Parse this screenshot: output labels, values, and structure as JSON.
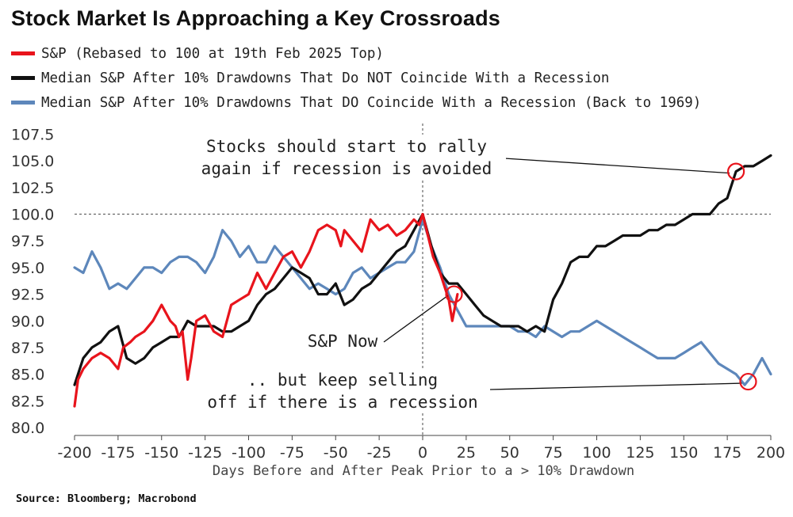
{
  "chart_data": {
    "type": "line",
    "title": "Stock Market Is Approaching a Key Crossroads",
    "xlabel": "Days Before and After Peak Prior to a > 10% Drawdown",
    "ylabel": "",
    "xlim": [
      -200,
      200
    ],
    "ylim": [
      80,
      108.5
    ],
    "x_ticks": [
      -200,
      -175,
      -150,
      -125,
      -100,
      -75,
      -50,
      -25,
      0,
      25,
      50,
      75,
      100,
      125,
      150,
      175,
      200
    ],
    "x_tick_labels": [
      "-200",
      "-175",
      "-150",
      "-125",
      "-100",
      "-75",
      "-50",
      "-25",
      "0",
      "25",
      "50",
      "75",
      "100",
      "125",
      "150",
      "175",
      "200"
    ],
    "y_ticks": [
      80,
      82.5,
      85,
      87.5,
      90,
      92.5,
      95,
      97.5,
      100,
      102.5,
      105,
      107.5
    ],
    "y_tick_labels": [
      "80.0",
      "82.5",
      "85.0",
      "87.5",
      "90.0",
      "92.5",
      "95.0",
      "97.5",
      "100.0",
      "102.5",
      "105.0",
      "107.5"
    ],
    "reference_lines": [
      {
        "axis": "y",
        "value": 100,
        "style": "dashed"
      },
      {
        "axis": "x",
        "value": 0,
        "style": "dashed"
      }
    ],
    "legend_position": "top-left",
    "series": [
      {
        "name": "S&P (Rebased to 100 at 19th Feb 2025 Top)",
        "color": "#e8141c",
        "x": [
          -200,
          -198,
          -195,
          -190,
          -185,
          -180,
          -175,
          -172,
          -168,
          -165,
          -160,
          -155,
          -150,
          -145,
          -142,
          -140,
          -138,
          -135,
          -133,
          -130,
          -125,
          -120,
          -115,
          -110,
          -105,
          -100,
          -95,
          -90,
          -85,
          -80,
          -75,
          -70,
          -65,
          -60,
          -55,
          -50,
          -47,
          -45,
          -40,
          -35,
          -30,
          -25,
          -20,
          -15,
          -10,
          -5,
          -2,
          0,
          3,
          6,
          10,
          13,
          15,
          17,
          20
        ],
        "y": [
          82,
          84.5,
          85.5,
          86.5,
          87,
          86.5,
          85.5,
          87.5,
          88,
          88.5,
          89,
          90,
          91.5,
          90,
          89.5,
          88.5,
          89,
          84.5,
          86.5,
          90,
          90.5,
          89,
          88.5,
          91.5,
          92,
          92.5,
          94.5,
          93,
          94.5,
          96,
          96.5,
          95,
          96.5,
          98.5,
          99,
          98.5,
          97,
          98.5,
          97.5,
          96.5,
          99.5,
          98.5,
          99,
          98,
          98.5,
          99.5,
          99,
          100,
          98,
          96,
          94.5,
          93,
          92,
          90,
          92.5
        ]
      },
      {
        "name": "Median S&P After 10% Drawdowns That Do NOT Coincide With a Recession",
        "color": "#111111",
        "x": [
          -200,
          -195,
          -190,
          -185,
          -180,
          -175,
          -170,
          -165,
          -160,
          -155,
          -150,
          -145,
          -140,
          -135,
          -130,
          -125,
          -120,
          -115,
          -110,
          -105,
          -100,
          -95,
          -90,
          -85,
          -80,
          -75,
          -70,
          -65,
          -60,
          -55,
          -50,
          -45,
          -40,
          -35,
          -30,
          -25,
          -20,
          -15,
          -10,
          -5,
          0,
          5,
          10,
          15,
          20,
          25,
          30,
          35,
          40,
          45,
          50,
          55,
          60,
          65,
          70,
          75,
          80,
          85,
          90,
          95,
          100,
          105,
          110,
          115,
          120,
          125,
          130,
          135,
          140,
          145,
          150,
          155,
          160,
          165,
          170,
          175,
          180,
          185,
          190,
          195,
          200
        ],
        "y": [
          84,
          86.5,
          87.5,
          88,
          89,
          89.5,
          86.5,
          86,
          86.5,
          87.5,
          88,
          88.5,
          88.5,
          90,
          89.5,
          89.5,
          89.5,
          89,
          89,
          89.5,
          90,
          91.5,
          92.5,
          93,
          94,
          95,
          94.5,
          94,
          92.5,
          92.5,
          93.5,
          91.5,
          92,
          93,
          93.5,
          94.5,
          95.5,
          96.5,
          97,
          98.5,
          100,
          97,
          94.5,
          93.5,
          93.5,
          92.5,
          91.5,
          90.5,
          90,
          89.5,
          89.5,
          89.5,
          89,
          89.5,
          89,
          92,
          93.5,
          95.5,
          96,
          96,
          97,
          97,
          97.5,
          98,
          98,
          98,
          98.5,
          98.5,
          99,
          99,
          99.5,
          100,
          100,
          100,
          101,
          101.5,
          104,
          104.5,
          104.5,
          105,
          105.5
        ]
      },
      {
        "name": "Median S&P After 10% Drawdowns That DO Coincide With a Recession (Back to 1969)",
        "color": "#5d87bb",
        "x": [
          -200,
          -195,
          -190,
          -185,
          -180,
          -175,
          -170,
          -165,
          -160,
          -155,
          -150,
          -145,
          -140,
          -135,
          -130,
          -125,
          -120,
          -115,
          -110,
          -105,
          -100,
          -95,
          -90,
          -85,
          -80,
          -75,
          -70,
          -65,
          -60,
          -55,
          -50,
          -45,
          -40,
          -35,
          -30,
          -25,
          -20,
          -15,
          -10,
          -5,
          0,
          5,
          10,
          15,
          20,
          25,
          30,
          35,
          40,
          45,
          50,
          55,
          60,
          65,
          70,
          75,
          80,
          85,
          90,
          95,
          100,
          105,
          110,
          115,
          120,
          125,
          130,
          135,
          140,
          145,
          150,
          155,
          160,
          165,
          170,
          175,
          180,
          185,
          190,
          195,
          200
        ],
        "y": [
          95,
          94.5,
          96.5,
          95,
          93,
          93.5,
          93,
          94,
          95,
          95,
          94.5,
          95.5,
          96,
          96,
          95.5,
          94.5,
          96,
          98.5,
          97.5,
          96,
          97,
          95.5,
          95.5,
          97,
          96,
          95,
          94,
          93,
          93.5,
          93,
          92.5,
          93,
          94.5,
          95,
          94,
          94.5,
          95,
          95.5,
          95.5,
          96.5,
          99.5,
          97,
          95,
          92.5,
          91,
          89.5,
          89.5,
          89.5,
          89.5,
          89.5,
          89.5,
          89,
          89,
          88.5,
          89.5,
          89,
          88.5,
          89,
          89,
          89.5,
          90,
          89.5,
          89,
          88.5,
          88,
          87.5,
          87,
          86.5,
          86.5,
          86.5,
          87,
          87.5,
          88,
          87,
          86,
          85.5,
          85,
          84,
          85,
          86.5,
          85
        ]
      }
    ],
    "annotations": [
      {
        "text": "Stocks should start to rally",
        "target": [
          180,
          104
        ]
      },
      {
        "text": "again if recession is avoided",
        "target": [
          180,
          104
        ]
      },
      {
        "text": "S&P Now",
        "target": [
          18,
          92.5
        ]
      },
      {
        "text": ".. but keep selling",
        "target": [
          187,
          84.3
        ]
      },
      {
        "text": "off if there is a recession",
        "target": [
          187,
          84.3
        ]
      }
    ]
  },
  "source": "Source: Bloomberg; Macrobond"
}
